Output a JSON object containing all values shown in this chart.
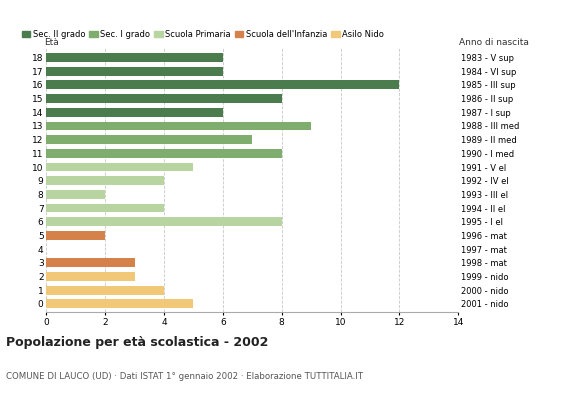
{
  "ages": [
    18,
    17,
    16,
    15,
    14,
    13,
    12,
    11,
    10,
    9,
    8,
    7,
    6,
    5,
    4,
    3,
    2,
    1,
    0
  ],
  "values": [
    6,
    6,
    12,
    8,
    6,
    9,
    7,
    8,
    5,
    4,
    2,
    4,
    8,
    2,
    0,
    3,
    3,
    4,
    5
  ],
  "categories": [
    "Sec. II grado",
    "Sec. I grado",
    "Scuola Primaria",
    "Scuola dell'Infanzia",
    "Asilo Nido"
  ],
  "colors": [
    "#4a7c4e",
    "#7fad6e",
    "#b8d4a0",
    "#d4824a",
    "#f0c878"
  ],
  "age_colors": {
    "18": "#4a7c4e",
    "17": "#4a7c4e",
    "16": "#4a7c4e",
    "15": "#4a7c4e",
    "14": "#4a7c4e",
    "13": "#7fad6e",
    "12": "#7fad6e",
    "11": "#7fad6e",
    "10": "#b8d4a0",
    "9": "#b8d4a0",
    "8": "#b8d4a0",
    "7": "#b8d4a0",
    "6": "#b8d4a0",
    "5": "#d4824a",
    "4": "#d4824a",
    "3": "#d4824a",
    "2": "#f0c878",
    "1": "#f0c878",
    "0": "#f0c878"
  },
  "right_labels": {
    "18": "1983 - V sup",
    "17": "1984 - VI sup",
    "16": "1985 - III sup",
    "15": "1986 - II sup",
    "14": "1987 - I sup",
    "13": "1988 - III med",
    "12": "1989 - II med",
    "11": "1990 - I med",
    "10": "1991 - V el",
    "9": "1992 - IV el",
    "8": "1993 - III el",
    "7": "1994 - II el",
    "6": "1995 - I el",
    "5": "1996 - mat",
    "4": "1997 - mat",
    "3": "1998 - mat",
    "2": "1999 - nido",
    "1": "2000 - nido",
    "0": "2001 - nido"
  },
  "title": "Popolazione per età scolastica - 2002",
  "subtitle": "COMUNE DI LAUCO (UD) · Dati ISTAT 1° gennaio 2002 · Elaborazione TUTTITALIA.IT",
  "xlabel_age": "Età",
  "xlabel_anno": "Anno di nascita",
  "xlim": [
    0,
    14
  ],
  "xticks": [
    0,
    2,
    4,
    6,
    8,
    10,
    12,
    14
  ],
  "bg_color": "#ffffff",
  "grid_color": "#c8c8c8"
}
